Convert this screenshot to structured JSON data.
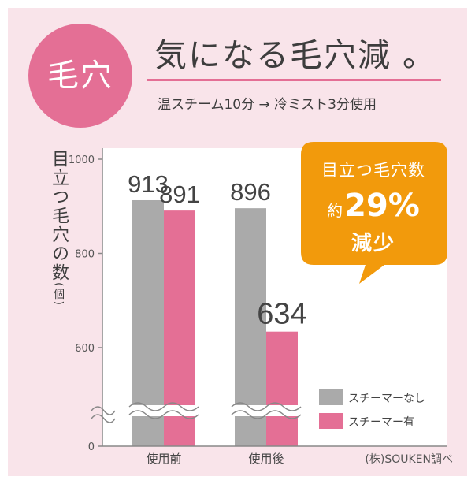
{
  "badge": {
    "text": "毛穴"
  },
  "headline": {
    "text": "気になる毛穴減",
    "suffix": "。"
  },
  "subtitle": "温スチーム10分 → 冷ミスト3分使用",
  "callout": {
    "line1": "目立つ毛穴数",
    "prefix": "約",
    "value": "29%",
    "line3": "減少"
  },
  "source": "(株)SOUKEN調べ",
  "colors": {
    "pink": "#e46f95",
    "gray": "#aaaaaa",
    "orange": "#f29a0c",
    "panel": "#f9e4ea"
  },
  "chart_data": {
    "type": "bar",
    "categories": [
      "使用前",
      "使用後"
    ],
    "series": [
      {
        "name": "スチーマーなし",
        "values": [
          913,
          896
        ]
      },
      {
        "name": "スチーマー有",
        "values": [
          891,
          634
        ]
      }
    ],
    "data_labels": [
      [
        "913",
        "891"
      ],
      [
        "896",
        "634"
      ]
    ],
    "ylabel": "目立つ毛穴の数",
    "ylabel_unit": "(個)",
    "yticks": [
      0,
      600,
      800,
      1000
    ],
    "ylim": [
      0,
      1000
    ],
    "axis_break": true,
    "grid": false,
    "legend_position": "bottom-right"
  }
}
